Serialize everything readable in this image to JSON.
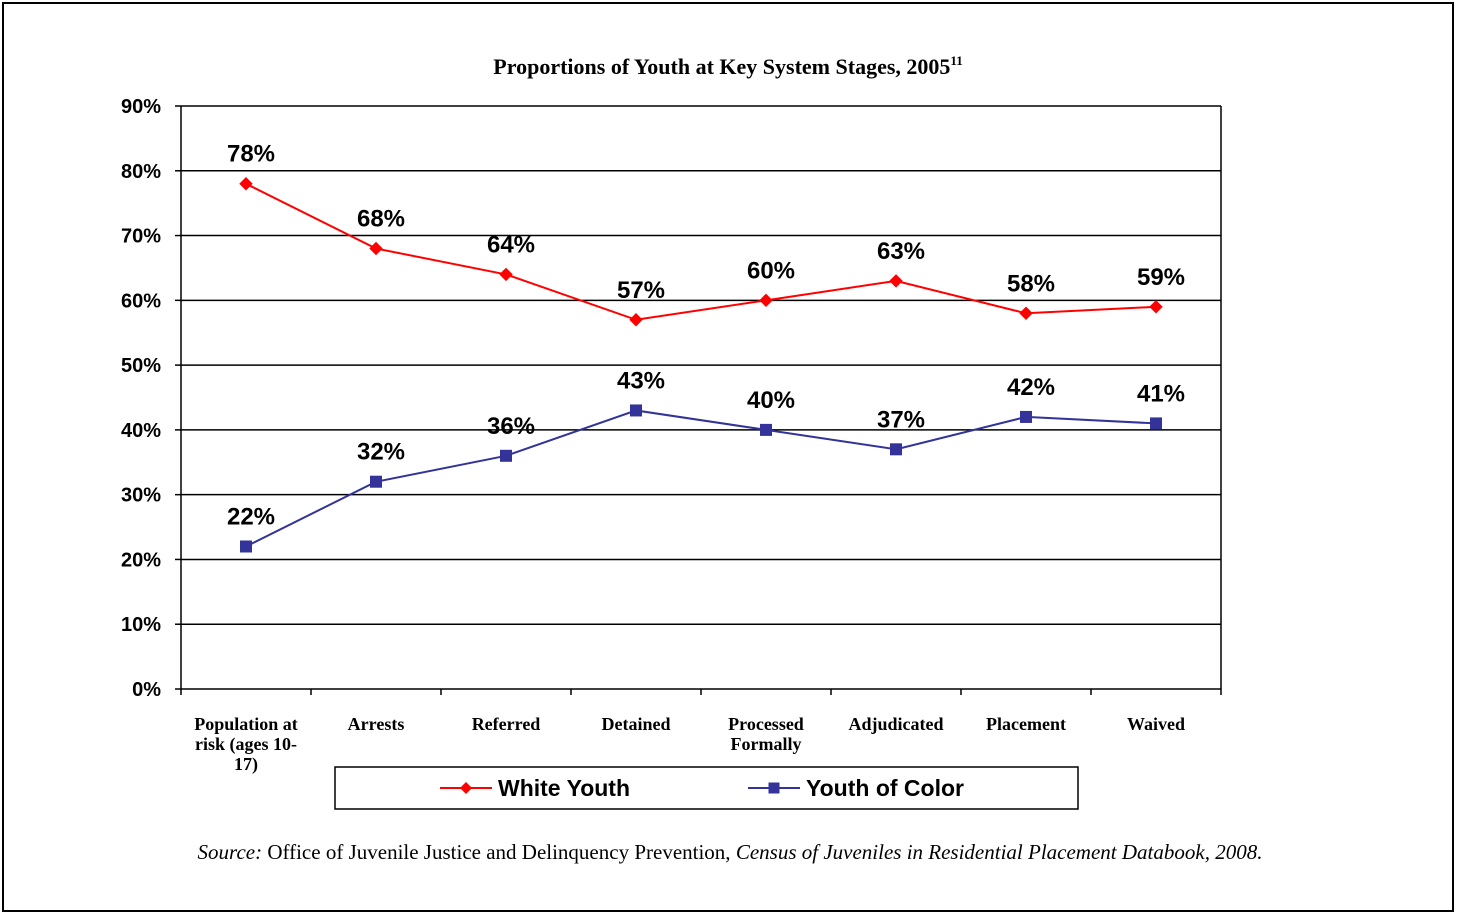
{
  "chart_data": {
    "type": "line",
    "title": "Proportions of Youth at Key System Stages, 2005",
    "title_superscript": "11",
    "categories": [
      "Population at risk (ages 10-17)",
      "Arrests",
      "Referred",
      "Detained",
      "Processed Formally",
      "Adjudicated",
      "Placement",
      "Waived"
    ],
    "category_label_lines": [
      [
        "Population at",
        "risk (ages 10-",
        "17)"
      ],
      [
        "Arrests"
      ],
      [
        "Referred"
      ],
      [
        "Detained"
      ],
      [
        "Processed",
        "Formally"
      ],
      [
        "Adjudicated"
      ],
      [
        "Placement"
      ],
      [
        "Waived"
      ]
    ],
    "series": [
      {
        "name": "White Youth",
        "color": "#ff0000",
        "marker": "diamond",
        "values": [
          78,
          68,
          64,
          57,
          60,
          63,
          58,
          59
        ],
        "labels": [
          "78%",
          "68%",
          "64%",
          "57%",
          "60%",
          "63%",
          "58%",
          "59%"
        ]
      },
      {
        "name": "Youth of Color",
        "color": "#333399",
        "marker": "square",
        "values": [
          22,
          32,
          36,
          43,
          40,
          37,
          42,
          41
        ],
        "labels": [
          "22%",
          "32%",
          "36%",
          "43%",
          "40%",
          "37%",
          "42%",
          "41%"
        ]
      }
    ],
    "ylim": [
      0,
      90
    ],
    "yticks": [
      "0%",
      "10%",
      "20%",
      "30%",
      "40%",
      "50%",
      "60%",
      "70%",
      "80%",
      "90%"
    ],
    "grid": true,
    "legend_position": "bottom"
  },
  "source": {
    "prefix": "Source:",
    "publisher": " Office of Juvenile Justice and Delinquency Prevention, ",
    "publication": "Census of Juveniles in Residential Placement Databook, 2008."
  }
}
